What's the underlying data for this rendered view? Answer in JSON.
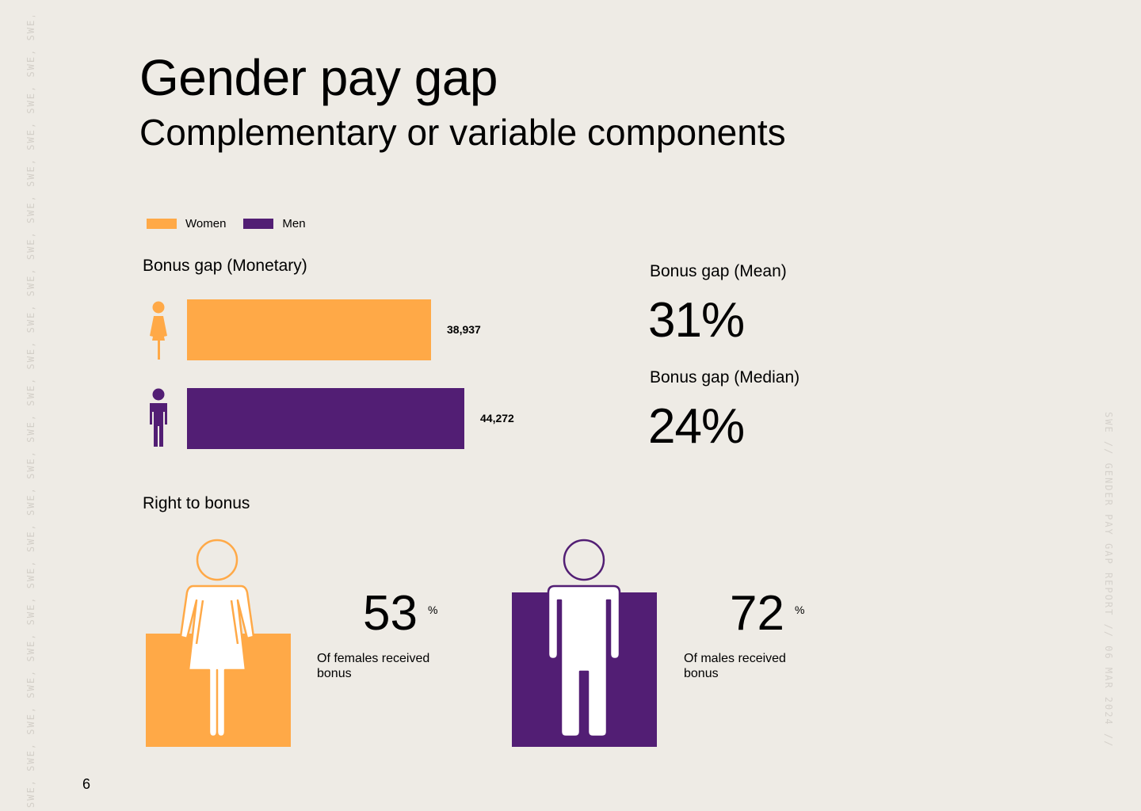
{
  "header": {
    "title": "Gender pay gap",
    "subtitle": "Complementary or variable components"
  },
  "legend": [
    {
      "label": "Women",
      "color": "#FFA947"
    },
    {
      "label": "Men",
      "color": "#521E74"
    }
  ],
  "colors": {
    "women": "#FFA947",
    "men": "#521E74",
    "background": "#EEEBE5"
  },
  "chart_data": [
    {
      "type": "bar",
      "orientation": "horizontal",
      "title": "Bonus gap (Monetary)",
      "categories": [
        "Women",
        "Men"
      ],
      "values": [
        38937,
        44272
      ],
      "value_labels": [
        "38,937",
        "44,272"
      ],
      "colors": [
        "#FFA947",
        "#521E74"
      ],
      "icons": [
        "female-figure-icon",
        "male-figure-icon"
      ],
      "legend_position": "top-left",
      "grid": false
    }
  ],
  "stats": {
    "mean_label": "Bonus gap (Mean)",
    "mean_value": "31%",
    "median_label": "Bonus gap (Median)",
    "median_value": "24%"
  },
  "right_to_bonus": {
    "title": "Right to bonus",
    "female": {
      "value": "53",
      "unit": "%",
      "caption": "Of females received bonus",
      "icon": "female-outline-icon"
    },
    "male": {
      "value": "72",
      "unit": "%",
      "caption": "Of males received bonus",
      "icon": "male-outline-icon"
    }
  },
  "footer": {
    "page_number": "6",
    "side_text": "SWE // GENDER PAY GAP REPORT // 06 MAR 2024 //",
    "left_watermark": "SWE, SWE, SWE, SWE, SWE, SWE, SWE, SWE, SWE, SWE, SWE, SWE, SWE, SWE, SWE, SWE, SWE, SWE, SWE, SWE, SWE, SWE, SWE"
  }
}
